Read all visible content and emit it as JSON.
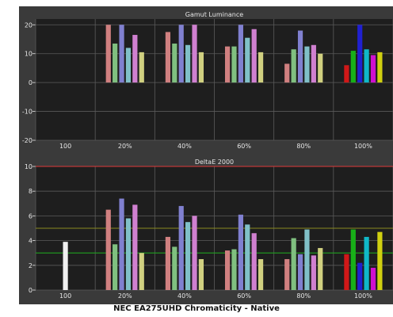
{
  "caption": "NEC EA275UHD Chromaticity - Native",
  "colors": {
    "background": "#3a3a3a",
    "plot_background": "#1e1e1e",
    "gridline": "#5a5a5a",
    "tick_text": "#e6e6e6",
    "reference_line_red": "#e03a3a",
    "reference_line_olive": "#8a8a20",
    "reference_line_green": "#20a020",
    "bar_colors": [
      "#f0f0f0",
      "#d08080",
      "#80c080",
      "#8080d0",
      "#80c0c8",
      "#d080d0",
      "#d0d080"
    ],
    "bar_colors_100": [
      "#d01818",
      "#18b018",
      "#2020d0",
      "#10b8c8",
      "#d010d0",
      "#d0d010"
    ]
  },
  "chart_data": [
    {
      "type": "bar",
      "title": "Gamut Luminance",
      "categories": [
        "100",
        "20%",
        "40%",
        "60%",
        "80%",
        "100%"
      ],
      "ylim": [
        -20,
        22
      ],
      "yticks": [
        -20,
        -10,
        0,
        10,
        20
      ],
      "grid": true,
      "series": [
        {
          "values": [
            null,
            20,
            17.5,
            12.5,
            6.5,
            6
          ]
        },
        {
          "values": [
            null,
            13.5,
            13.5,
            12.5,
            11.5,
            11
          ]
        },
        {
          "values": [
            null,
            20,
            20,
            20,
            18,
            20
          ]
        },
        {
          "values": [
            null,
            12,
            13,
            15.5,
            12.5,
            11.5
          ]
        },
        {
          "values": [
            null,
            16.5,
            20,
            18.5,
            13,
            9.5
          ]
        },
        {
          "values": [
            null,
            10.5,
            10.5,
            10.5,
            10,
            10.5
          ]
        }
      ]
    },
    {
      "type": "bar",
      "title": "DeltaE 2000",
      "categories": [
        "100",
        "20%",
        "40%",
        "60%",
        "80%",
        "100%"
      ],
      "ylim": [
        0,
        10
      ],
      "yticks": [
        0,
        2,
        4,
        6,
        8,
        10
      ],
      "grid": true,
      "reference_lines": [
        {
          "y": 10,
          "color": "#e03a3a"
        },
        {
          "y": 5,
          "color": "#8a8a20"
        },
        {
          "y": 3,
          "color": "#20a020"
        }
      ],
      "series": [
        {
          "values": [
            3.9,
            null,
            null,
            null,
            null,
            null
          ]
        },
        {
          "values": [
            null,
            6.5,
            4.3,
            3.2,
            2.5,
            2.9
          ]
        },
        {
          "values": [
            null,
            3.7,
            3.5,
            3.3,
            4.2,
            4.9
          ]
        },
        {
          "values": [
            null,
            7.4,
            6.8,
            6.1,
            2.9,
            2.2
          ]
        },
        {
          "values": [
            null,
            5.8,
            5.5,
            5.3,
            4.9,
            4.3
          ]
        },
        {
          "values": [
            null,
            6.9,
            6.0,
            4.6,
            2.8,
            1.8
          ]
        },
        {
          "values": [
            null,
            3.0,
            2.5,
            2.5,
            3.4,
            4.7
          ]
        }
      ]
    }
  ]
}
